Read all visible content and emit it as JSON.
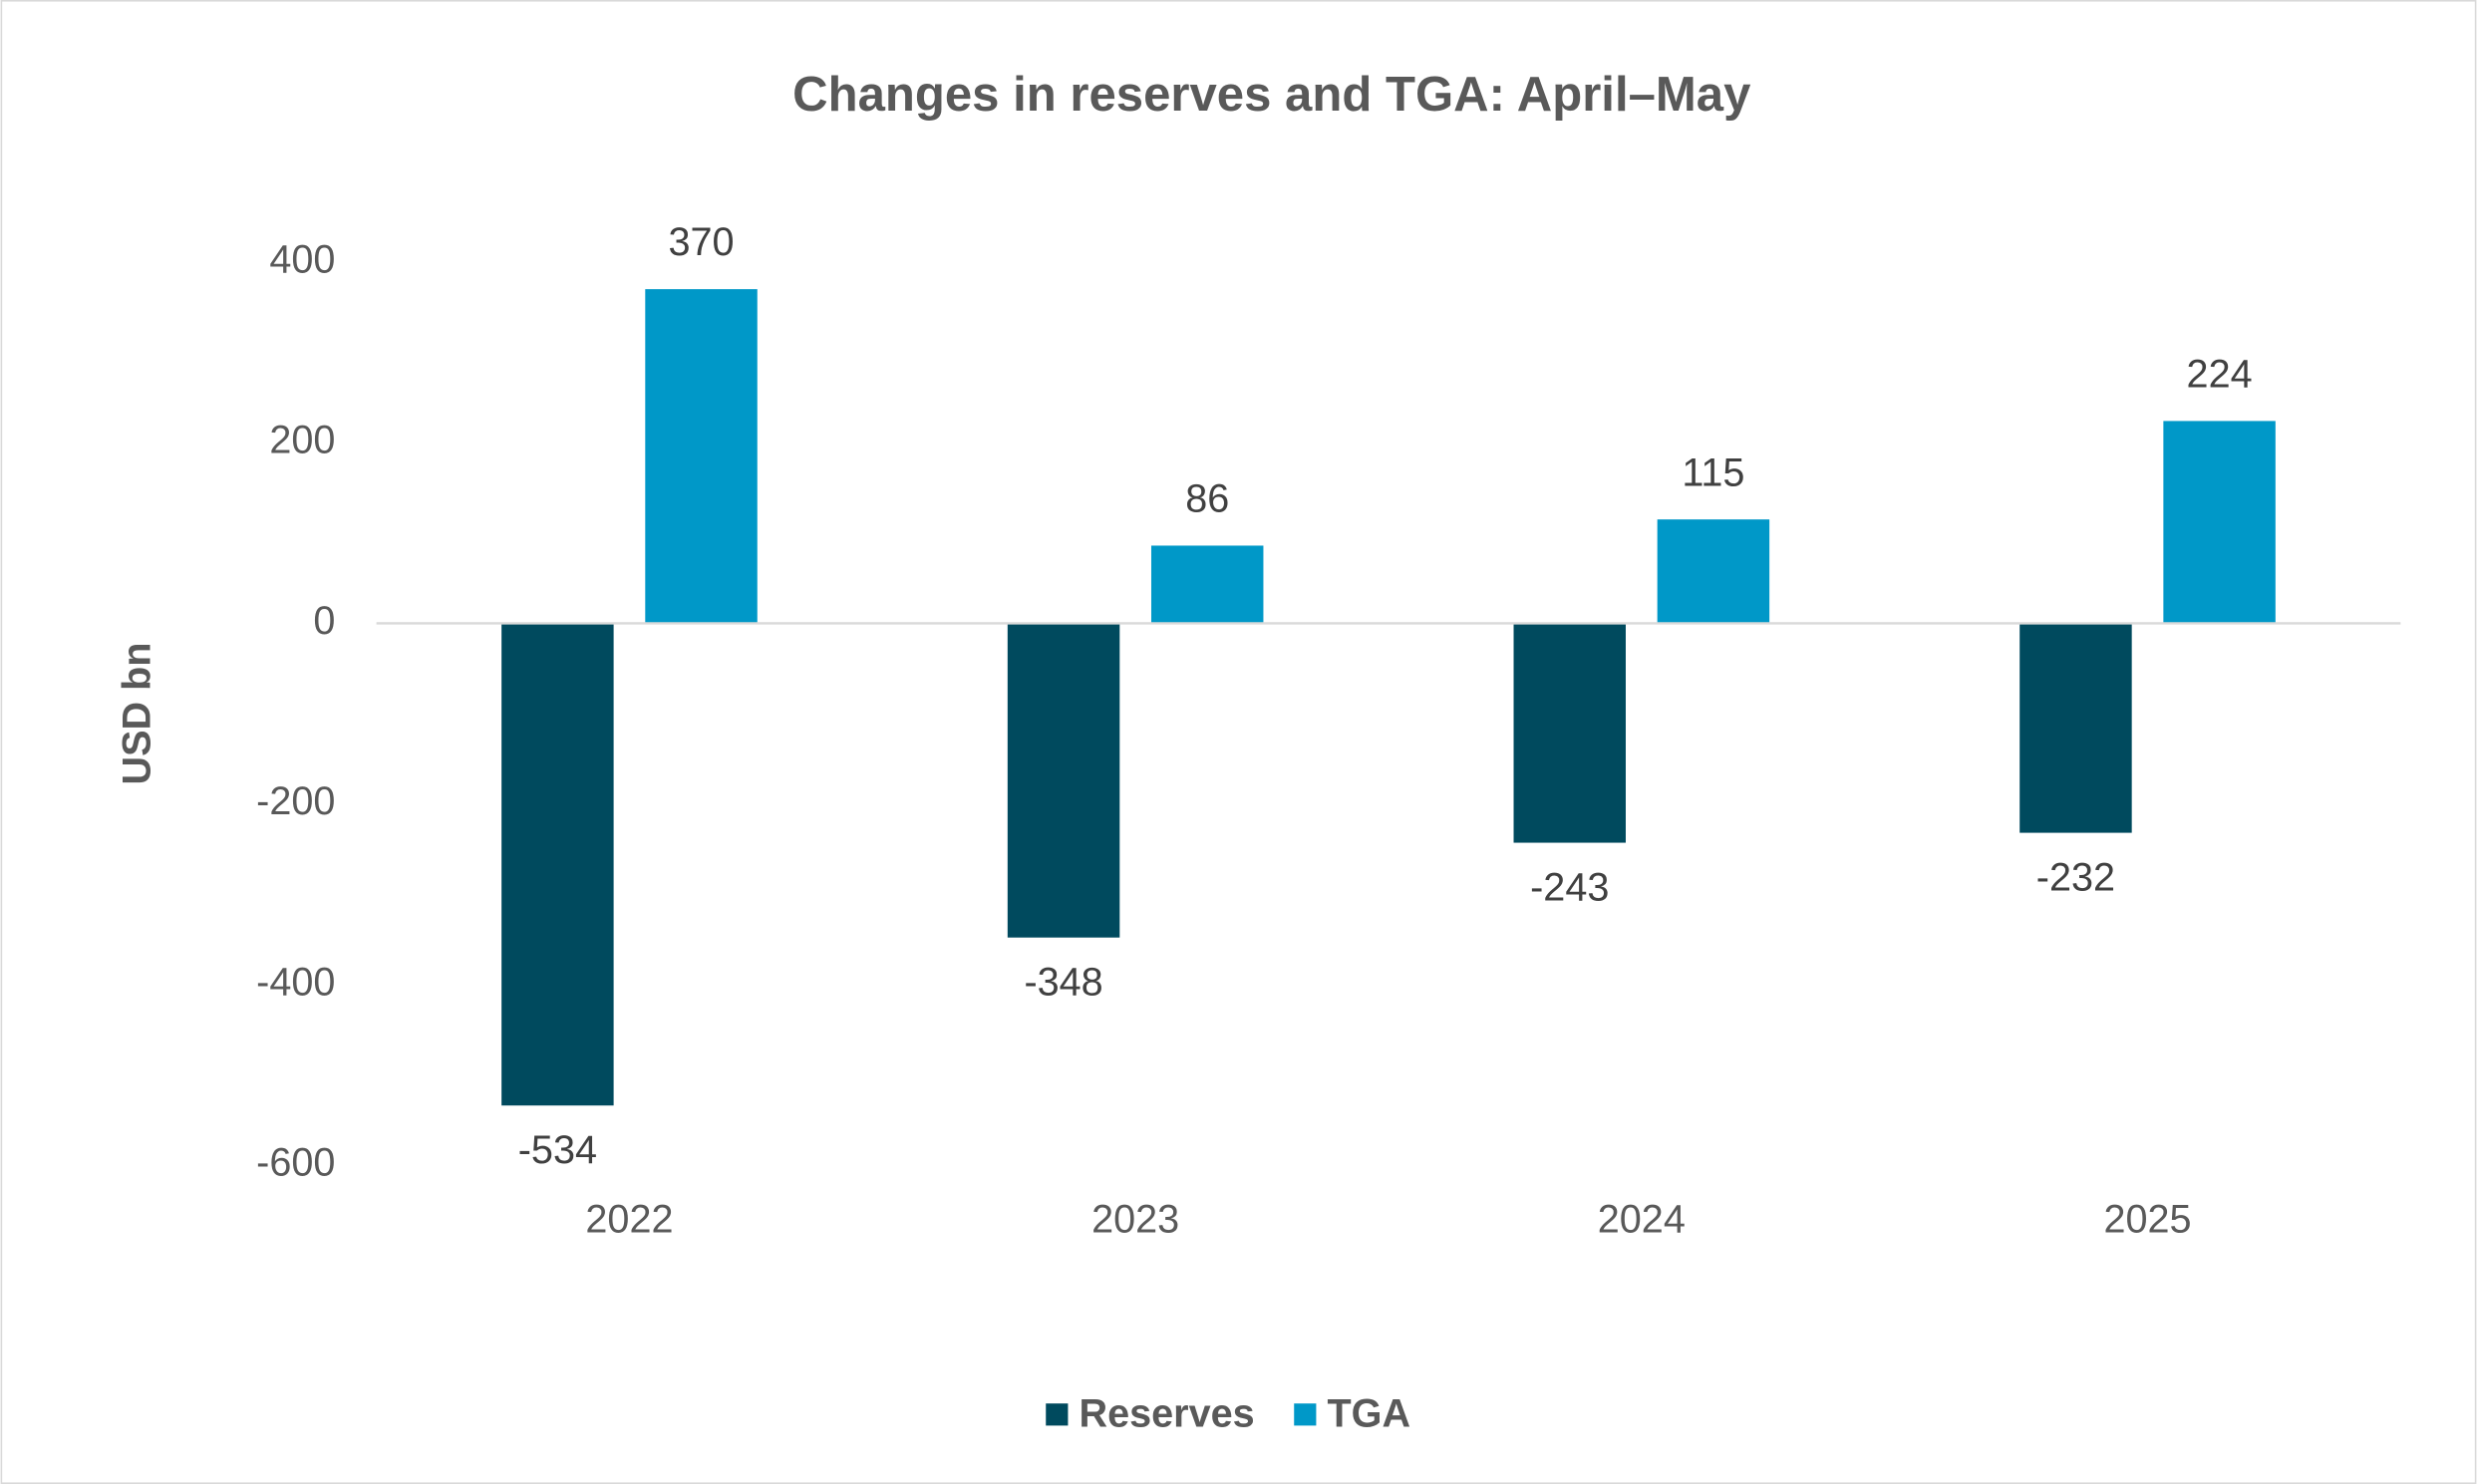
{
  "chart_data": {
    "type": "bar",
    "title": "Changes in reserves and TGA: April–May",
    "y_label": "USD bn",
    "categories": [
      "2022",
      "2023",
      "2024",
      "2025"
    ],
    "series": [
      {
        "name": "Reserves",
        "color": "#004a5e",
        "values": [
          -534,
          -348,
          -243,
          -232
        ]
      },
      {
        "name": "TGA",
        "color": "#0098c8",
        "values": [
          370,
          86,
          115,
          224
        ]
      }
    ],
    "ylim": [
      -600,
      400
    ],
    "yticks": [
      -600,
      -400,
      -200,
      0,
      200,
      400
    ],
    "legend": "bottom"
  }
}
